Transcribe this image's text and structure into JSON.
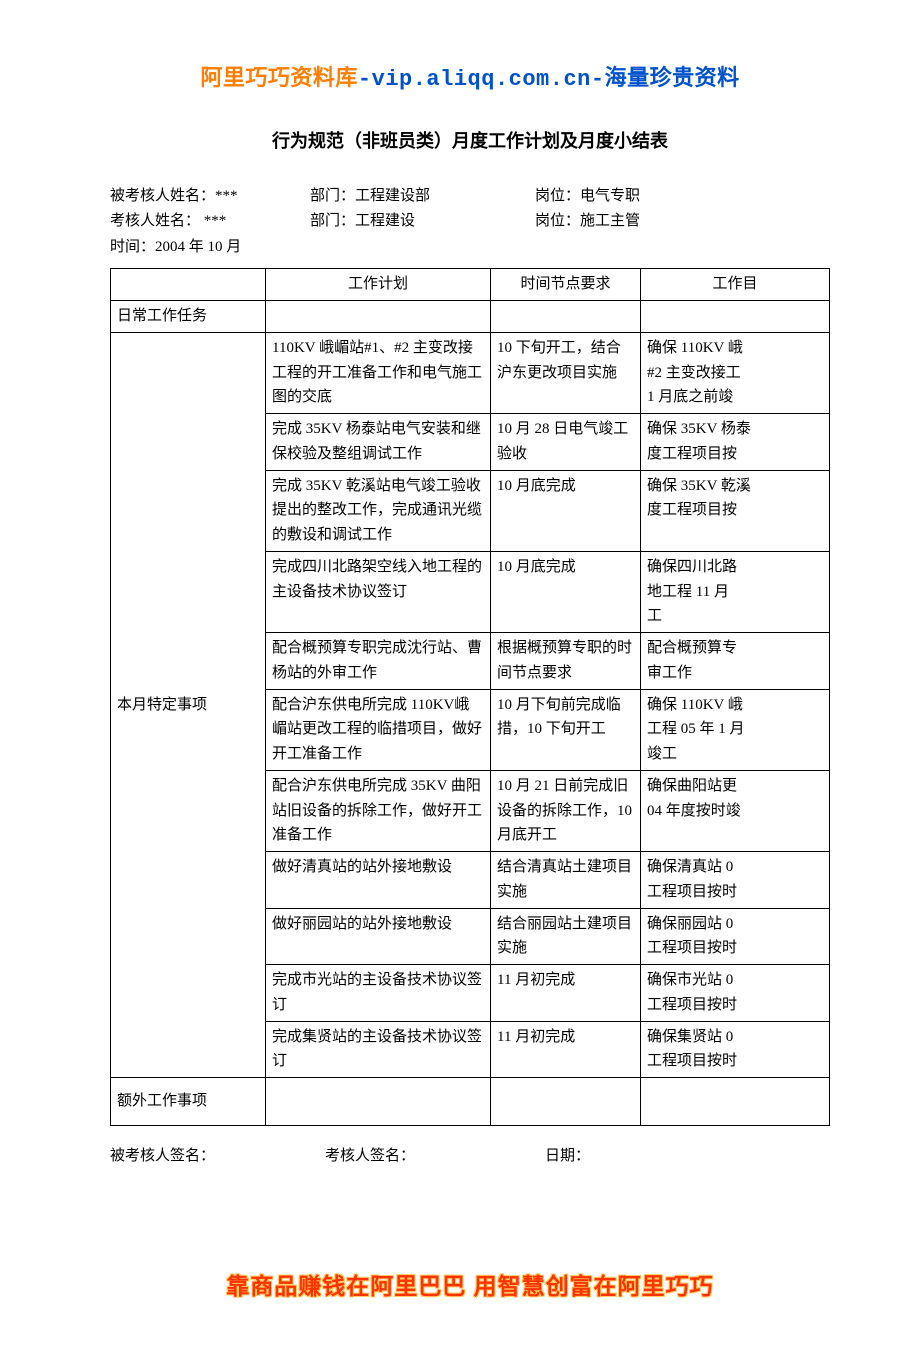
{
  "banner_top": {
    "seg1": "阿里巧巧资料库",
    "dash1": "-",
    "seg2": "vip.aliqq.com.cn",
    "dash2": "-",
    "seg3": "海量珍贵资料"
  },
  "doc_title": "行为规范（非班员类）月度工作计划及月度小结表",
  "info": {
    "line1": {
      "c1": "被考核人姓名：***",
      "c2": "部门：工程建设部",
      "c3": "岗位：电气专职"
    },
    "line2": {
      "c1": "考核人姓名：  ***",
      "c2": "部门：工程建设",
      "c3": "岗位：施工主管"
    },
    "line3": {
      "c1": "时间：2004 年 10  月"
    }
  },
  "table": {
    "headers": {
      "h1": "",
      "h2": "工作计划",
      "h3": "时间节点要求",
      "h4": "工作目"
    },
    "row_daily_label": "日常工作任务",
    "row_special_label": "本月特定事项",
    "row_extra_label": "额外工作事项",
    "special_rows": [
      {
        "plan": "110KV 峨嵋站#1、#2 主变改接工程的开工准备工作和电气施工图的交底",
        "time": "10 下旬开工，结合沪东更改项目实施",
        "target": "确保 110KV 峨\n#2 主变改接工\n1 月底之前竣"
      },
      {
        "plan": "完成 35KV 杨泰站电气安装和继保校验及整组调试工作",
        "time": "10 月 28 日电气竣工验收",
        "target": "确保 35KV 杨泰\n度工程项目按"
      },
      {
        "plan": "完成 35KV 乾溪站电气竣工验收提出的整改工作，完成通讯光缆的敷设和调试工作",
        "time": "10 月底完成",
        "target": "确保 35KV 乾溪\n度工程项目按"
      },
      {
        "plan": "完成四川北路架空线入地工程的主设备技术协议签订",
        "time": "10 月底完成",
        "target": "确保四川北路\n地工程 11 月\n工"
      },
      {
        "plan": "配合概预算专职完成沈行站、曹杨站的外审工作",
        "time": "根据概预算专职的时间节点要求",
        "target": "配合概预算专\n审工作"
      },
      {
        "plan": "配合沪东供电所完成 110KV峨嵋站更改工程的临措项目，做好开工准备工作",
        "time": "10 月下旬前完成临措，10 下旬开工",
        "target": "确保 110KV 峨\n工程 05 年 1 月\n竣工"
      },
      {
        "plan": "配合沪东供电所完成 35KV 曲阳站旧设备的拆除工作，做好开工准备工作",
        "time": "10 月 21 日前完成旧设备的拆除工作，10 月底开工",
        "target": "确保曲阳站更\n04 年度按时竣"
      },
      {
        "plan": "做好清真站的站外接地敷设",
        "time": "结合清真站土建项目实施",
        "target": "确保清真站 0\n工程项目按时"
      },
      {
        "plan": "做好丽园站的站外接地敷设",
        "time": "结合丽园站土建项目实施",
        "target": "确保丽园站 0\n工程项目按时"
      },
      {
        "plan": "完成市光站的主设备技术协议签订",
        "time": "11 月初完成",
        "target": "确保市光站 0\n工程项目按时"
      },
      {
        "plan": "完成集贤站的主设备技术协议签订",
        "time": "11 月初完成",
        "target": "确保集贤站 0\n工程项目按时"
      }
    ]
  },
  "signatures": {
    "s1": "被考核人签名：",
    "s2": "考核人签名：",
    "s3": "日期："
  },
  "banner_bottom": "靠商品赚钱在阿里巴巴  用智慧创富在阿里巧巧"
}
